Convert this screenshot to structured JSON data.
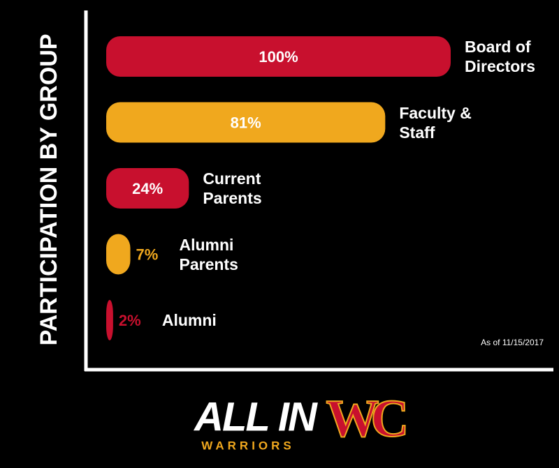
{
  "chart_data": {
    "type": "barh",
    "title": "PARTICIPATION BY GROUP",
    "annotation": "As of 11/15/2017",
    "categories": [
      "Board of Directors",
      "Faculty & Staff",
      "Current Parents",
      "Alumni Parents",
      "Alumni"
    ],
    "values": [
      100,
      81,
      24,
      7,
      2
    ],
    "value_labels": [
      "100%",
      "81%",
      "24%",
      "7%",
      "2%"
    ],
    "colors": [
      "#c8102e",
      "#f0a81e",
      "#c8102e",
      "#f0a81e",
      "#c8102e"
    ],
    "xlim": [
      0,
      100
    ]
  },
  "logo": {
    "text": "ALL IN",
    "subtext": "WARRIORS",
    "mark": "WC"
  }
}
